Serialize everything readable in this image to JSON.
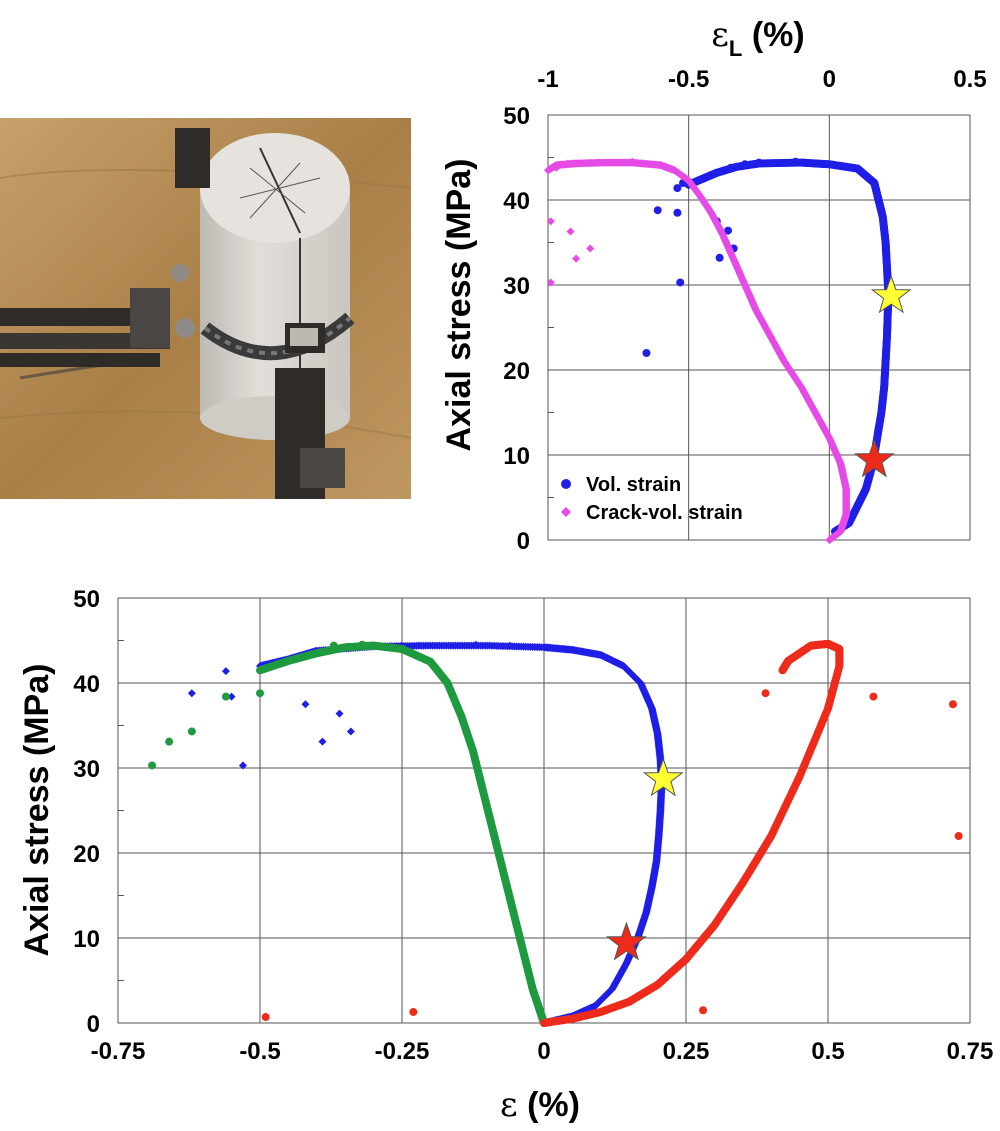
{
  "photo": {
    "description_icon": "strain-gauge-specimen-photo",
    "colors": {
      "wood": "#b28a52",
      "specimen": "#dcd9d4",
      "metal": "#2e2b29"
    }
  },
  "chart_data": [
    {
      "type": "scatter",
      "xlabel_main": "ε",
      "xlabel_sub": "L",
      "xlabel_unit": " (%)",
      "ylabel": "Axial stress (MPa)",
      "xlim": [
        -1,
        0.5
      ],
      "ylim": [
        0,
        50
      ],
      "xticks": [
        -1,
        -0.5,
        0,
        0.5
      ],
      "xtick_labels": [
        "-1",
        "-0.5",
        "0",
        "0.5"
      ],
      "yticks": [
        0,
        10,
        20,
        30,
        40,
        50
      ],
      "ytick_labels": [
        "0",
        "10",
        "20",
        "30",
        "40",
        "50"
      ],
      "x_axis_position": "top",
      "grid": true,
      "legend_position": "bottom-left",
      "series": [
        {
          "name": "Vol. strain",
          "color": "#1f1fe6",
          "marker": "circle",
          "curve": [
            [
              0.02,
              1
            ],
            [
              0.07,
              2
            ],
            [
              0.1,
              4
            ],
            [
              0.13,
              6
            ],
            [
              0.155,
              9
            ],
            [
              0.17,
              12
            ],
            [
              0.185,
              15
            ],
            [
              0.195,
              18
            ],
            [
              0.2,
              21
            ],
            [
              0.205,
              24
            ],
            [
              0.208,
              27
            ],
            [
              0.21,
              29
            ],
            [
              0.205,
              32
            ],
            [
              0.2,
              35
            ],
            [
              0.19,
              38
            ],
            [
              0.175,
              40
            ],
            [
              0.16,
              42
            ],
            [
              0.1,
              43.7
            ],
            [
              0,
              44.2
            ],
            [
              -0.1,
              44.4
            ],
            [
              -0.25,
              44.3
            ],
            [
              -0.33,
              43.9
            ],
            [
              -0.4,
              43.2
            ],
            [
              -0.45,
              42.5
            ],
            [
              -0.5,
              41.8
            ]
          ],
          "scatter": [
            [
              -0.3,
              44.2
            ],
            [
              -0.35,
              43.8
            ],
            [
              -0.25,
              44.4
            ],
            [
              -0.12,
              44.5
            ],
            [
              -0.05,
              44.3
            ],
            [
              -0.54,
              41.4
            ],
            [
              -0.52,
              42
            ],
            [
              -0.54,
              38.5
            ],
            [
              -0.61,
              38.8
            ],
            [
              -0.4,
              37.5
            ],
            [
              -0.36,
              36.4
            ],
            [
              -0.34,
              34.3
            ],
            [
              -0.39,
              33.2
            ],
            [
              -0.53,
              30.3
            ],
            [
              -0.65,
              22
            ]
          ]
        },
        {
          "name": "Crack-vol. strain",
          "color": "#e64be6",
          "marker": "diamond",
          "curve": [
            [
              0,
              0
            ],
            [
              0.04,
              1
            ],
            [
              0.06,
              3
            ],
            [
              0.06,
              6
            ],
            [
              0.04,
              9
            ],
            [
              0.0,
              12
            ],
            [
              -0.05,
              15
            ],
            [
              -0.1,
              18
            ],
            [
              -0.16,
              21
            ],
            [
              -0.21,
              24
            ],
            [
              -0.26,
              27
            ],
            [
              -0.3,
              30
            ],
            [
              -0.34,
              33
            ],
            [
              -0.38,
              36
            ],
            [
              -0.42,
              38.5
            ],
            [
              -0.46,
              40.5
            ],
            [
              -0.5,
              42.3
            ],
            [
              -0.55,
              43.5
            ],
            [
              -0.6,
              44.1
            ],
            [
              -0.7,
              44.4
            ],
            [
              -0.8,
              44.4
            ],
            [
              -0.9,
              44.3
            ],
            [
              -0.97,
              44.1
            ],
            [
              -1,
              43.5
            ]
          ],
          "scatter": [
            [
              -0.93,
              44.3
            ],
            [
              -0.7,
              44.5
            ],
            [
              -0.82,
              44.4
            ],
            [
              -0.99,
              37.5
            ],
            [
              -0.92,
              36.3
            ],
            [
              -0.85,
              34.3
            ],
            [
              -0.9,
              33.1
            ],
            [
              -0.99,
              30.3
            ],
            [
              -0.97,
              43.8
            ]
          ]
        }
      ],
      "markers": [
        {
          "shape": "star",
          "color": "#ffff33",
          "x": 0.22,
          "y": 28.7
        },
        {
          "shape": "star",
          "color": "#ee2b1b",
          "x": 0.16,
          "y": 9.4
        }
      ]
    },
    {
      "type": "scatter",
      "xlabel_main": "ε",
      "xlabel_unit": " (%)",
      "ylabel": "Axial stress (MPa)",
      "xlim": [
        -0.75,
        0.75
      ],
      "ylim": [
        0,
        50
      ],
      "xticks": [
        -0.75,
        -0.5,
        -0.25,
        0,
        0.25,
        0.5,
        0.75
      ],
      "xtick_labels": [
        "-0.75",
        "-0.5",
        "-0.25",
        "0",
        "0.25",
        "0.5",
        "0.75"
      ],
      "yticks": [
        0,
        10,
        20,
        30,
        40,
        50
      ],
      "ytick_labels": [
        "0",
        "10",
        "20",
        "30",
        "40",
        "50"
      ],
      "grid": true,
      "series": [
        {
          "color": "#1f1fe6",
          "marker": "diamond",
          "curve": [
            [
              0,
              0
            ],
            [
              0.05,
              0.8
            ],
            [
              0.09,
              2
            ],
            [
              0.12,
              4
            ],
            [
              0.145,
              7
            ],
            [
              0.165,
              10
            ],
            [
              0.18,
              13
            ],
            [
              0.19,
              16
            ],
            [
              0.198,
              19
            ],
            [
              0.202,
              22
            ],
            [
              0.205,
              25
            ],
            [
              0.207,
              28
            ],
            [
              0.205,
              31
            ],
            [
              0.2,
              34
            ],
            [
              0.19,
              37
            ],
            [
              0.17,
              40
            ],
            [
              0.14,
              42
            ],
            [
              0.1,
              43.3
            ],
            [
              0.05,
              43.9
            ],
            [
              0,
              44.2
            ],
            [
              -0.1,
              44.4
            ],
            [
              -0.2,
              44.4
            ],
            [
              -0.3,
              44.3
            ],
            [
              -0.4,
              43.8
            ],
            [
              -0.45,
              42.8
            ],
            [
              -0.5,
              42
            ]
          ],
          "scatter": [
            [
              -0.62,
              38.8
            ],
            [
              -0.55,
              38.4
            ],
            [
              -0.42,
              37.5
            ],
            [
              -0.36,
              36.4
            ],
            [
              -0.34,
              34.3
            ],
            [
              -0.39,
              33.1
            ],
            [
              -0.53,
              30.3
            ],
            [
              -0.56,
              41.4
            ],
            [
              -0.12,
              44.5
            ],
            [
              -0.06,
              44.4
            ],
            [
              -0.22,
              44.4
            ]
          ]
        },
        {
          "color": "#1f9a3f",
          "marker": "circle",
          "curve": [
            [
              0,
              0
            ],
            [
              -0.01,
              2
            ],
            [
              -0.02,
              4
            ],
            [
              -0.035,
              8
            ],
            [
              -0.05,
              12
            ],
            [
              -0.065,
              16
            ],
            [
              -0.08,
              20
            ],
            [
              -0.095,
              24
            ],
            [
              -0.11,
              28
            ],
            [
              -0.125,
              32
            ],
            [
              -0.145,
              36
            ],
            [
              -0.17,
              40
            ],
            [
              -0.2,
              42.5
            ],
            [
              -0.25,
              44
            ],
            [
              -0.3,
              44.4
            ],
            [
              -0.35,
              44.2
            ],
            [
              -0.4,
              43.5
            ],
            [
              -0.45,
              42.6
            ],
            [
              -0.5,
              41.5
            ]
          ],
          "scatter": [
            [
              -0.5,
              38.8
            ],
            [
              -0.56,
              38.4
            ],
            [
              -0.62,
              34.3
            ],
            [
              -0.66,
              33.1
            ],
            [
              -0.69,
              30.3
            ],
            [
              -0.37,
              44.4
            ],
            [
              -0.32,
              44.5
            ]
          ]
        },
        {
          "color": "#ee2b1b",
          "marker": "circle",
          "curve": [
            [
              0,
              0
            ],
            [
              0.05,
              0.5
            ],
            [
              0.1,
              1.3
            ],
            [
              0.15,
              2.5
            ],
            [
              0.2,
              4.5
            ],
            [
              0.25,
              7.5
            ],
            [
              0.3,
              11.5
            ],
            [
              0.35,
              16.5
            ],
            [
              0.4,
              22
            ],
            [
              0.45,
              29
            ],
            [
              0.5,
              37
            ],
            [
              0.52,
              42
            ],
            [
              0.52,
              44
            ],
            [
              0.5,
              44.6
            ],
            [
              0.47,
              44.4
            ],
            [
              0.43,
              42.6
            ],
            [
              0.42,
              41.5
            ]
          ],
          "scatter": [
            [
              0.39,
              38.8
            ],
            [
              0.58,
              38.4
            ],
            [
              0.72,
              37.5
            ],
            [
              0.73,
              22
            ],
            [
              0.28,
              1.5
            ],
            [
              -0.23,
              1.3
            ],
            [
              -0.49,
              0.7
            ]
          ]
        }
      ],
      "markers": [
        {
          "shape": "star",
          "color": "#ffff33",
          "x": 0.21,
          "y": 28.7
        },
        {
          "shape": "star",
          "color": "#ee2b1b",
          "x": 0.145,
          "y": 9.4
        }
      ]
    }
  ]
}
